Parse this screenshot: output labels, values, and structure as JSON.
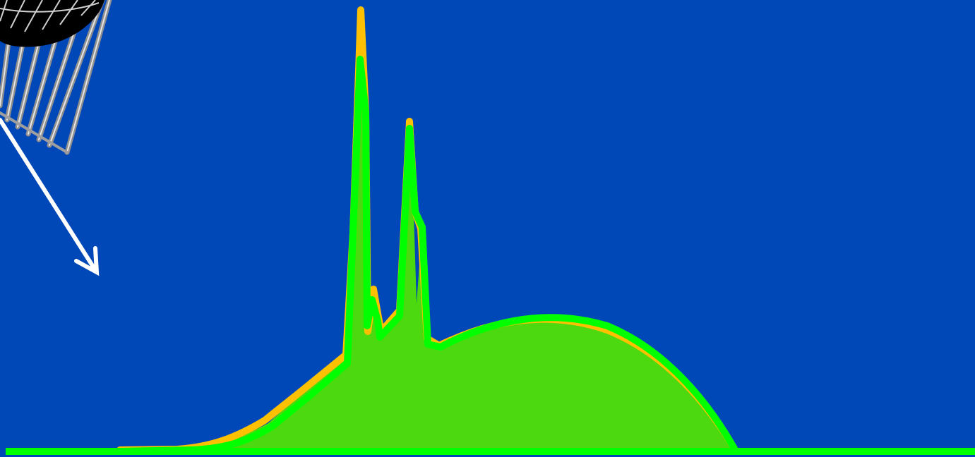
{
  "colors": {
    "background": "#0047b8",
    "spectrum_fill": "#4cd90f",
    "outer_curve": "#ffc000",
    "inner_curve": "#00ff00",
    "baseline": "#00ff00",
    "arrow": "#ffffff",
    "lamp_body": "#000000",
    "lamp_rays": "#9e9e9e"
  },
  "icons": {
    "lamp": "grow-lamp-icon",
    "light_arrow": "down-right-arrow-icon"
  }
}
